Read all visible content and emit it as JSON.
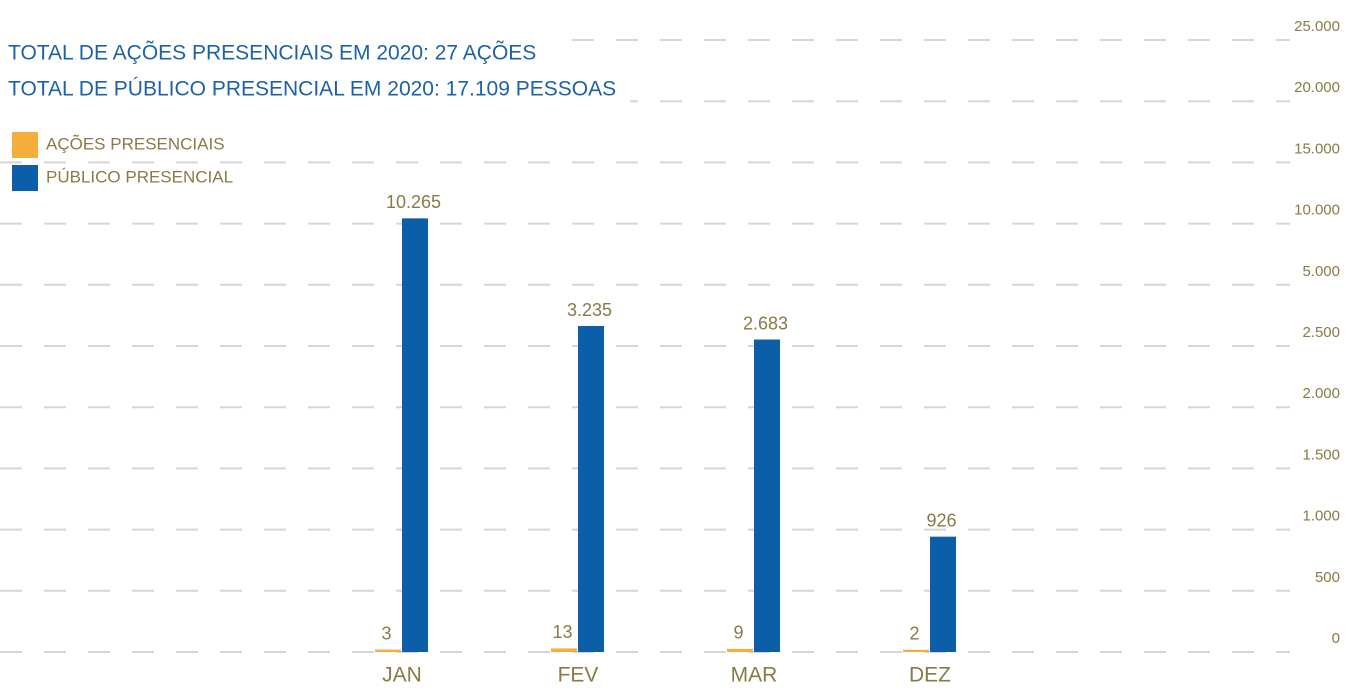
{
  "chart_data": {
    "type": "bar",
    "title": "TOTAL DE AÇÕES PRESENCIAIS EM 2020: 27 AÇÕES",
    "subtitle": "TOTAL DE PÚBLICO PRESENCIAL EM 2020: 17.109 PESSOAS",
    "categories": [
      "JAN",
      "FEV",
      "MAR",
      "DEZ"
    ],
    "series": [
      {
        "name": "AÇÕES PRESENCIAIS",
        "color": "#f5ae3c",
        "values": [
          3,
          13,
          9,
          2
        ]
      },
      {
        "name": "PÚBLICO PRESENCIAL",
        "color": "#0d5ea8",
        "values": [
          10265,
          3235,
          2683,
          926
        ],
        "value_labels": [
          "10.265",
          "3.235",
          "2.683",
          "926"
        ]
      }
    ],
    "ylim": [
      0,
      25000
    ],
    "yticks": [
      0,
      500,
      {
        "value": 1000,
        "label": "1.000"
      },
      {
        "value": 1500,
        "label": "1.500"
      },
      {
        "value": 2000,
        "label": "2.000"
      },
      {
        "value": 2500,
        "label": "2.500"
      },
      {
        "value": 5000,
        "label": "5.000"
      },
      {
        "value": 10000,
        "label": "10.000"
      },
      {
        "value": 15000,
        "label": "15.000"
      },
      {
        "value": 20000,
        "label": "20.000"
      },
      {
        "value": 25000,
        "label": "25.000"
      }
    ],
    "grid": true
  }
}
